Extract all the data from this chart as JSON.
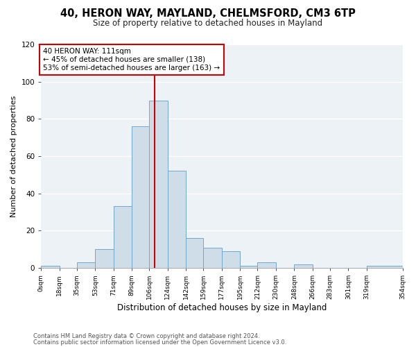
{
  "title1": "40, HERON WAY, MAYLAND, CHELMSFORD, CM3 6TP",
  "title2": "Size of property relative to detached houses in Mayland",
  "xlabel": "Distribution of detached houses by size in Mayland",
  "ylabel": "Number of detached properties",
  "bar_values": [
    1,
    0,
    3,
    10,
    33,
    76,
    90,
    52,
    16,
    11,
    9,
    1,
    3,
    0,
    2,
    0,
    0,
    0,
    1
  ],
  "bin_edges": [
    0,
    18,
    35,
    53,
    71,
    89,
    106,
    124,
    142,
    159,
    177,
    195,
    212,
    230,
    248,
    266,
    283,
    301,
    319,
    354
  ],
  "tick_labels": [
    "0sqm",
    "18sqm",
    "35sqm",
    "53sqm",
    "71sqm",
    "89sqm",
    "106sqm",
    "124sqm",
    "142sqm",
    "159sqm",
    "177sqm",
    "195sqm",
    "212sqm",
    "230sqm",
    "248sqm",
    "266sqm",
    "283sqm",
    "301sqm",
    "319sqm",
    "354sqm"
  ],
  "bar_color": "#cfdde8",
  "bar_edge_color": "#6fa8d0",
  "vline_x": 111,
  "vline_color": "#cc0000",
  "ylim": [
    0,
    120
  ],
  "yticks": [
    0,
    20,
    40,
    60,
    80,
    100,
    120
  ],
  "annotation_text": "40 HERON WAY: 111sqm\n← 45% of detached houses are smaller (138)\n53% of semi-detached houses are larger (163) →",
  "annotation_box_color": "#ffffff",
  "annotation_box_edge": "#cc0000",
  "footer1": "Contains HM Land Registry data © Crown copyright and database right 2024.",
  "footer2": "Contains public sector information licensed under the Open Government Licence v3.0.",
  "background_color": "#edf2f7",
  "grid_color": "#ffffff",
  "title1_fontsize": 10.5,
  "title2_fontsize": 8.5,
  "ylabel_fontsize": 8.0,
  "xlabel_fontsize": 8.5,
  "tick_fontsize": 6.5,
  "ytick_fontsize": 7.5,
  "annot_fontsize": 7.5
}
